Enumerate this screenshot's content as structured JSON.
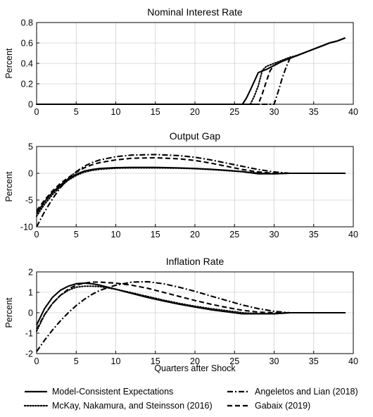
{
  "chart_data": [
    {
      "type": "line",
      "title": "Nominal Interest Rate",
      "xlabel": "",
      "ylabel": "Percent",
      "xlim": [
        0,
        40
      ],
      "ylim": [
        0,
        0.8
      ],
      "xticks": [
        "0",
        "5",
        "10",
        "15",
        "20",
        "25",
        "30",
        "35",
        "40"
      ],
      "yticks": [
        "0",
        "0.2",
        "0.4",
        "0.6",
        "0.8"
      ],
      "grid": true,
      "series": [
        {
          "name": "Model-Consistent Expectations",
          "style": "solid",
          "x": [
            0,
            26,
            26.5,
            27,
            28,
            29,
            30,
            31,
            32,
            33,
            34,
            35,
            36,
            37,
            38,
            39
          ],
          "y": [
            0,
            0,
            0.06,
            0.14,
            0.31,
            0.34,
            0.38,
            0.42,
            0.45,
            0.48,
            0.51,
            0.54,
            0.57,
            0.6,
            0.62,
            0.65
          ]
        },
        {
          "name": "McKay, Nakamura, and Steinsson (2016)",
          "style": "dotted",
          "x": [
            0,
            27,
            27.5,
            28,
            28.5,
            29,
            30,
            31,
            32,
            33,
            34,
            35,
            36,
            37,
            38,
            39
          ],
          "y": [
            0,
            0,
            0.08,
            0.18,
            0.33,
            0.37,
            0.4,
            0.43,
            0.46,
            0.48,
            0.51,
            0.54,
            0.57,
            0.6,
            0.62,
            0.65
          ]
        },
        {
          "name": "Angeletos and Lian (2018)",
          "style": "dashdot",
          "x": [
            0,
            30,
            30.5,
            31,
            31.5,
            32,
            33,
            34,
            35,
            36,
            37,
            38,
            39
          ],
          "y": [
            0,
            0,
            0.12,
            0.25,
            0.36,
            0.45,
            0.48,
            0.51,
            0.54,
            0.57,
            0.6,
            0.62,
            0.65
          ]
        },
        {
          "name": "Gabaix (2019)",
          "style": "dashed",
          "x": [
            0,
            28,
            28.5,
            29,
            29.5,
            30,
            31,
            32,
            33,
            34,
            35,
            36,
            37,
            38,
            39
          ],
          "y": [
            0,
            0,
            0.1,
            0.22,
            0.33,
            0.38,
            0.42,
            0.45,
            0.48,
            0.51,
            0.54,
            0.57,
            0.6,
            0.62,
            0.65
          ]
        }
      ]
    },
    {
      "type": "line",
      "title": "Output Gap",
      "xlabel": "",
      "ylabel": "Percent",
      "xlim": [
        0,
        40
      ],
      "ylim": [
        -10,
        5
      ],
      "xticks": [
        "0",
        "5",
        "10",
        "15",
        "20",
        "25",
        "30",
        "35",
        "40"
      ],
      "yticks": [
        "-10",
        "-5",
        "0",
        "5"
      ],
      "grid": true,
      "series": [
        {
          "name": "Model-Consistent Expectations",
          "style": "solid",
          "x": [
            0,
            1,
            2,
            3,
            4,
            5,
            6,
            7,
            8,
            10,
            12,
            15,
            18,
            20,
            22,
            24,
            26,
            27,
            28,
            30,
            32,
            35,
            39
          ],
          "y": [
            -7.5,
            -5.3,
            -3.6,
            -2.2,
            -1.1,
            -0.2,
            0.4,
            0.7,
            0.9,
            1.05,
            1.1,
            1.1,
            1.0,
            0.9,
            0.75,
            0.55,
            0.3,
            0.1,
            -0.1,
            -0.1,
            0,
            0,
            0
          ]
        },
        {
          "name": "McKay, Nakamura, and Steinsson (2016)",
          "style": "dotted",
          "x": [
            0,
            1,
            2,
            3,
            4,
            5,
            6,
            7,
            8,
            10,
            12,
            15,
            18,
            20,
            22,
            24,
            26,
            28,
            30,
            32,
            35,
            39
          ],
          "y": [
            -8.0,
            -5.8,
            -4.0,
            -2.5,
            -1.3,
            -0.4,
            0.2,
            0.55,
            0.75,
            0.95,
            1.0,
            1.0,
            0.95,
            0.85,
            0.7,
            0.5,
            0.3,
            0.05,
            -0.1,
            0,
            0,
            0
          ]
        },
        {
          "name": "Angeletos and Lian (2018)",
          "style": "dashdot",
          "x": [
            0,
            1,
            2,
            3,
            4,
            5,
            6,
            7,
            8,
            10,
            12,
            15,
            18,
            20,
            22,
            24,
            26,
            28,
            30,
            32,
            35,
            39
          ],
          "y": [
            -10.0,
            -7.2,
            -4.8,
            -2.7,
            -1.0,
            0.3,
            1.3,
            2.0,
            2.5,
            3.1,
            3.4,
            3.5,
            3.3,
            3.0,
            2.5,
            1.9,
            1.3,
            0.7,
            0.25,
            0,
            0,
            0
          ]
        },
        {
          "name": "Gabaix (2019)",
          "style": "dashed",
          "x": [
            0,
            1,
            2,
            3,
            4,
            5,
            6,
            7,
            8,
            10,
            12,
            15,
            18,
            20,
            22,
            24,
            26,
            28,
            30,
            32,
            35,
            39
          ],
          "y": [
            -7.0,
            -5.0,
            -3.3,
            -1.9,
            -0.8,
            0.2,
            1.0,
            1.6,
            2.0,
            2.5,
            2.8,
            2.9,
            2.7,
            2.4,
            1.9,
            1.3,
            0.7,
            0.25,
            0,
            0,
            0,
            0
          ]
        }
      ]
    },
    {
      "type": "line",
      "title": "Inflation Rate",
      "xlabel": "Quarters after Shock",
      "ylabel": "Percent",
      "xlim": [
        0,
        40
      ],
      "ylim": [
        -2,
        2
      ],
      "xticks": [
        "0",
        "5",
        "10",
        "15",
        "20",
        "25",
        "30",
        "35",
        "40"
      ],
      "yticks": [
        "-2",
        "-1",
        "0",
        "1",
        "2"
      ],
      "grid": true,
      "series": [
        {
          "name": "Model-Consistent Expectations",
          "style": "solid",
          "x": [
            0,
            1,
            2,
            3,
            4,
            5,
            6,
            7,
            8,
            10,
            12,
            14,
            16,
            18,
            20,
            22,
            24,
            26,
            28,
            30,
            32,
            35,
            39
          ],
          "y": [
            -0.6,
            0.2,
            0.75,
            1.1,
            1.3,
            1.42,
            1.45,
            1.42,
            1.35,
            1.15,
            0.95,
            0.75,
            0.58,
            0.42,
            0.28,
            0.15,
            0.05,
            -0.05,
            -0.05,
            -0.05,
            0,
            0,
            0
          ]
        },
        {
          "name": "McKay, Nakamura, and Steinsson (2016)",
          "style": "dotted",
          "x": [
            0,
            1,
            2,
            3,
            4,
            5,
            6,
            7,
            8,
            10,
            12,
            14,
            16,
            18,
            20,
            22,
            24,
            26,
            28,
            30,
            32,
            35,
            39
          ],
          "y": [
            -0.9,
            -0.1,
            0.45,
            0.85,
            1.1,
            1.25,
            1.3,
            1.3,
            1.28,
            1.15,
            0.98,
            0.8,
            0.62,
            0.46,
            0.32,
            0.2,
            0.1,
            0,
            -0.05,
            -0.05,
            0,
            0,
            0
          ]
        },
        {
          "name": "Angeletos and Lian (2018)",
          "style": "dashdot",
          "x": [
            0,
            1,
            2,
            3,
            4,
            5,
            6,
            7,
            8,
            10,
            12,
            14,
            16,
            18,
            20,
            22,
            24,
            26,
            28,
            30,
            32,
            35,
            39
          ],
          "y": [
            -1.9,
            -1.35,
            -0.85,
            -0.4,
            0,
            0.35,
            0.65,
            0.9,
            1.1,
            1.35,
            1.5,
            1.52,
            1.42,
            1.25,
            1.05,
            0.82,
            0.6,
            0.38,
            0.2,
            0.07,
            0,
            0,
            0
          ]
        },
        {
          "name": "Gabaix (2019)",
          "style": "dashed",
          "x": [
            0,
            1,
            2,
            3,
            4,
            5,
            6,
            7,
            8,
            10,
            12,
            14,
            16,
            18,
            20,
            22,
            24,
            26,
            28,
            30,
            32,
            35,
            39
          ],
          "y": [
            -0.8,
            -0.1,
            0.45,
            0.85,
            1.15,
            1.35,
            1.45,
            1.5,
            1.5,
            1.45,
            1.35,
            1.2,
            1.0,
            0.8,
            0.6,
            0.42,
            0.26,
            0.12,
            0.03,
            0,
            0,
            0,
            0
          ]
        }
      ]
    }
  ],
  "legend": {
    "placement": "bottom",
    "items": [
      {
        "label": "Model-Consistent Expectations",
        "style": "solid"
      },
      {
        "label": "McKay, Nakamura, and Steinsson (2016)",
        "style": "dotted"
      },
      {
        "label": "Angeletos and Lian (2018)",
        "style": "dashdot"
      },
      {
        "label": "Gabaix (2019)",
        "style": "dashed"
      }
    ]
  },
  "colors": {
    "line": "#000000",
    "grid": "#d0d0d0",
    "axis": "#000000"
  }
}
